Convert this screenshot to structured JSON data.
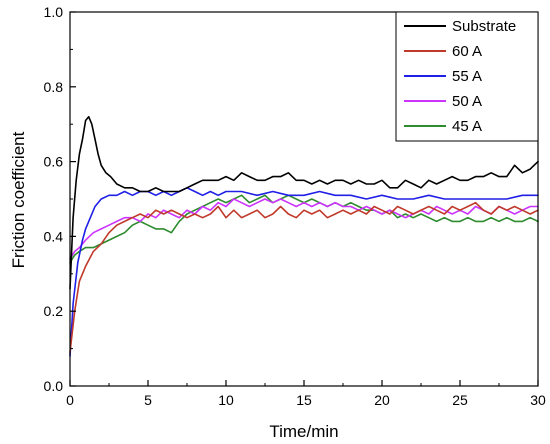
{
  "chart_data": {
    "type": "line",
    "xlabel": "Time/min",
    "ylabel": "Friction coefficient",
    "xlim": [
      0,
      30
    ],
    "ylim": [
      0.0,
      1.0
    ],
    "xticks": [
      0,
      5,
      10,
      15,
      20,
      25,
      30
    ],
    "xtick_labels": [
      "0",
      "5",
      "10",
      "15",
      "20",
      "25",
      "30"
    ],
    "yticks": [
      0.0,
      0.2,
      0.4,
      0.6,
      0.8,
      1.0
    ],
    "ytick_labels": [
      "0.0",
      "0.2",
      "0.4",
      "0.6",
      "0.8",
      "1.0"
    ],
    "grid": false,
    "legend_position": "top-right",
    "series": [
      {
        "name": "Substrate",
        "color": "#000000",
        "x": [
          0,
          0.2,
          0.4,
          0.6,
          0.8,
          1.0,
          1.2,
          1.4,
          1.6,
          1.8,
          2.0,
          2.3,
          2.6,
          3.0,
          3.5,
          4.0,
          4.5,
          5.0,
          5.5,
          6.0,
          6.5,
          7.0,
          7.5,
          8.0,
          8.5,
          9.0,
          9.5,
          10.0,
          10.5,
          11.0,
          11.5,
          12.0,
          12.5,
          13.0,
          13.5,
          14.0,
          14.5,
          15.0,
          15.5,
          16.0,
          16.5,
          17.0,
          17.5,
          18.0,
          18.5,
          19.0,
          19.5,
          20.0,
          20.5,
          21.0,
          21.5,
          22.0,
          22.5,
          23.0,
          23.5,
          24.0,
          24.5,
          25.0,
          25.5,
          26.0,
          26.5,
          27.0,
          27.5,
          28.0,
          28.5,
          29.0,
          29.5,
          30.0
        ],
        "y": [
          0.26,
          0.45,
          0.55,
          0.62,
          0.66,
          0.71,
          0.72,
          0.7,
          0.66,
          0.62,
          0.59,
          0.57,
          0.56,
          0.54,
          0.53,
          0.53,
          0.52,
          0.52,
          0.53,
          0.52,
          0.52,
          0.52,
          0.53,
          0.54,
          0.55,
          0.55,
          0.55,
          0.56,
          0.55,
          0.57,
          0.56,
          0.55,
          0.55,
          0.56,
          0.56,
          0.57,
          0.55,
          0.55,
          0.54,
          0.55,
          0.54,
          0.55,
          0.55,
          0.54,
          0.55,
          0.54,
          0.54,
          0.55,
          0.53,
          0.53,
          0.55,
          0.54,
          0.53,
          0.55,
          0.54,
          0.55,
          0.56,
          0.55,
          0.55,
          0.56,
          0.56,
          0.57,
          0.56,
          0.56,
          0.59,
          0.57,
          0.58,
          0.6
        ]
      },
      {
        "name": "60 A",
        "color": "#c0392b",
        "x": [
          0,
          0.3,
          0.6,
          1.0,
          1.5,
          2.0,
          2.5,
          3.0,
          3.5,
          4.0,
          4.5,
          5.0,
          5.5,
          6.0,
          6.5,
          7.0,
          7.5,
          8.0,
          8.5,
          9.0,
          9.5,
          10.0,
          10.5,
          11.0,
          11.5,
          12.0,
          12.5,
          13.0,
          13.5,
          14.0,
          14.5,
          15.0,
          15.5,
          16.0,
          16.5,
          17.0,
          17.5,
          18.0,
          18.5,
          19.0,
          19.5,
          20.0,
          20.5,
          21.0,
          21.5,
          22.0,
          22.5,
          23.0,
          23.5,
          24.0,
          24.5,
          25.0,
          25.5,
          26.0,
          26.5,
          27.0,
          27.5,
          28.0,
          28.5,
          29.0,
          29.5,
          30.0
        ],
        "y": [
          0.09,
          0.2,
          0.28,
          0.32,
          0.36,
          0.38,
          0.41,
          0.43,
          0.44,
          0.45,
          0.46,
          0.45,
          0.47,
          0.46,
          0.47,
          0.46,
          0.45,
          0.46,
          0.45,
          0.46,
          0.48,
          0.45,
          0.47,
          0.45,
          0.46,
          0.47,
          0.45,
          0.46,
          0.48,
          0.46,
          0.45,
          0.47,
          0.46,
          0.47,
          0.45,
          0.46,
          0.47,
          0.46,
          0.47,
          0.46,
          0.48,
          0.47,
          0.46,
          0.48,
          0.47,
          0.46,
          0.47,
          0.48,
          0.47,
          0.46,
          0.48,
          0.47,
          0.48,
          0.49,
          0.47,
          0.46,
          0.48,
          0.47,
          0.48,
          0.47,
          0.46,
          0.47
        ]
      },
      {
        "name": "55 A",
        "color": "#1f1fe6",
        "x": [
          0,
          0.2,
          0.5,
          0.8,
          1.0,
          1.3,
          1.6,
          2.0,
          2.5,
          3.0,
          3.5,
          4.0,
          4.5,
          5.0,
          5.5,
          6.0,
          6.5,
          7.0,
          7.5,
          8.0,
          8.5,
          9.0,
          9.5,
          10.0,
          11.0,
          12.0,
          13.0,
          14.0,
          15.0,
          16.0,
          17.0,
          18.0,
          19.0,
          20.0,
          21.0,
          22.0,
          23.0,
          24.0,
          25.0,
          26.0,
          27.0,
          28.0,
          29.0,
          30.0
        ],
        "y": [
          0.08,
          0.22,
          0.33,
          0.39,
          0.42,
          0.45,
          0.48,
          0.5,
          0.51,
          0.51,
          0.52,
          0.51,
          0.52,
          0.52,
          0.51,
          0.52,
          0.51,
          0.52,
          0.53,
          0.52,
          0.51,
          0.52,
          0.51,
          0.52,
          0.52,
          0.51,
          0.52,
          0.51,
          0.51,
          0.52,
          0.51,
          0.51,
          0.5,
          0.51,
          0.5,
          0.5,
          0.51,
          0.5,
          0.5,
          0.5,
          0.5,
          0.5,
          0.51,
          0.51
        ]
      },
      {
        "name": "50 A",
        "color": "#cc33ff",
        "x": [
          0,
          0.3,
          0.6,
          1.0,
          1.5,
          2.0,
          2.5,
          3.0,
          3.5,
          4.0,
          4.5,
          5.0,
          5.5,
          6.0,
          6.5,
          7.0,
          7.5,
          8.0,
          8.5,
          9.0,
          9.5,
          10.0,
          10.5,
          11.0,
          11.5,
          12.0,
          12.5,
          13.0,
          13.5,
          14.0,
          14.5,
          15.0,
          15.5,
          16.0,
          16.5,
          17.0,
          17.5,
          18.0,
          18.5,
          19.0,
          19.5,
          20.0,
          20.5,
          21.0,
          21.5,
          22.0,
          22.5,
          23.0,
          23.5,
          24.0,
          24.5,
          25.0,
          25.5,
          26.0,
          26.5,
          27.0,
          27.5,
          28.0,
          28.5,
          29.0,
          29.5,
          30.0
        ],
        "y": [
          0.34,
          0.36,
          0.37,
          0.39,
          0.41,
          0.42,
          0.43,
          0.44,
          0.45,
          0.45,
          0.44,
          0.46,
          0.45,
          0.47,
          0.46,
          0.45,
          0.47,
          0.46,
          0.48,
          0.47,
          0.49,
          0.48,
          0.5,
          0.49,
          0.48,
          0.49,
          0.5,
          0.49,
          0.5,
          0.49,
          0.48,
          0.49,
          0.48,
          0.49,
          0.48,
          0.49,
          0.48,
          0.48,
          0.47,
          0.48,
          0.47,
          0.46,
          0.47,
          0.46,
          0.45,
          0.46,
          0.47,
          0.46,
          0.48,
          0.47,
          0.46,
          0.47,
          0.46,
          0.48,
          0.47,
          0.46,
          0.48,
          0.47,
          0.46,
          0.47,
          0.48,
          0.48
        ]
      },
      {
        "name": "45 A",
        "color": "#2e8b2e",
        "x": [
          0,
          0.3,
          0.6,
          1.0,
          1.5,
          2.0,
          2.5,
          3.0,
          3.5,
          4.0,
          4.5,
          5.0,
          5.5,
          6.0,
          6.5,
          7.0,
          7.5,
          8.0,
          8.5,
          9.0,
          9.5,
          10.0,
          10.5,
          11.0,
          11.5,
          12.0,
          12.5,
          13.0,
          13.5,
          14.0,
          14.5,
          15.0,
          15.5,
          16.0,
          16.5,
          17.0,
          17.5,
          18.0,
          18.5,
          19.0,
          19.5,
          20.0,
          20.5,
          21.0,
          21.5,
          22.0,
          22.5,
          23.0,
          23.5,
          24.0,
          24.5,
          25.0,
          25.5,
          26.0,
          26.5,
          27.0,
          27.5,
          28.0,
          28.5,
          29.0,
          29.5,
          30.0
        ],
        "y": [
          0.33,
          0.35,
          0.36,
          0.37,
          0.37,
          0.38,
          0.39,
          0.4,
          0.41,
          0.43,
          0.44,
          0.43,
          0.42,
          0.42,
          0.41,
          0.44,
          0.46,
          0.47,
          0.48,
          0.49,
          0.5,
          0.49,
          0.5,
          0.51,
          0.49,
          0.5,
          0.51,
          0.49,
          0.5,
          0.51,
          0.5,
          0.49,
          0.5,
          0.49,
          0.48,
          0.49,
          0.48,
          0.49,
          0.48,
          0.47,
          0.47,
          0.46,
          0.47,
          0.45,
          0.46,
          0.45,
          0.46,
          0.45,
          0.44,
          0.45,
          0.44,
          0.44,
          0.45,
          0.44,
          0.44,
          0.45,
          0.44,
          0.45,
          0.44,
          0.44,
          0.45,
          0.44
        ]
      }
    ]
  }
}
